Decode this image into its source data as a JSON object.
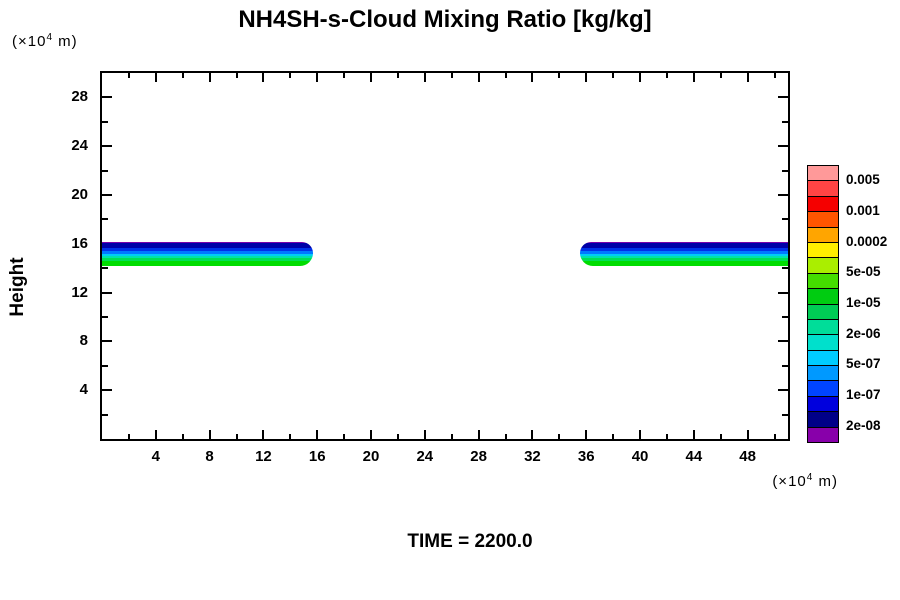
{
  "figure": {
    "title": "NH4SH-s-Cloud Mixing Ratio [kg/kg]",
    "time_label": "TIME = 2200.0",
    "y_axis": {
      "label": "Height",
      "unit_prefix": "(×10",
      "unit_sup": "4",
      "unit_suffix": " m)"
    },
    "x_axis": {
      "unit_prefix": "(×10",
      "unit_sup": "4",
      "unit_suffix": " m)"
    }
  },
  "chart_data": {
    "type": "heatmap",
    "subtype": "filled-contour",
    "title": "NH4SH-s-Cloud Mixing Ratio [kg/kg]",
    "xlabel": "(×10⁴ m)",
    "ylabel": "Height (×10⁴ m)",
    "xlim": [
      0,
      51
    ],
    "ylim": [
      0,
      30
    ],
    "grid": false,
    "x_major_ticks": [
      4,
      8,
      12,
      16,
      20,
      24,
      28,
      32,
      36,
      40,
      44,
      48
    ],
    "x_minor_step": 2,
    "y_major_ticks": [
      4,
      8,
      12,
      16,
      20,
      24,
      28
    ],
    "y_minor_step": 2,
    "annotations": [
      "TIME = 2200.0"
    ],
    "legend": {
      "position": "right",
      "labels": [
        "0.005",
        "0.001",
        "0.0002",
        "5e-05",
        "1e-05",
        "2e-06",
        "5e-07",
        "1e-07",
        "2e-08"
      ],
      "colors_top_to_bottom": [
        "#FF9999",
        "#FF4444",
        "#F50000",
        "#FF5500",
        "#FFA500",
        "#FFEE00",
        "#AAEE00",
        "#44DD00",
        "#00CC11",
        "#00CC55",
        "#00DD99",
        "#00E0CC",
        "#00CCFF",
        "#0099FF",
        "#0044FF",
        "#0000DD",
        "#000088",
        "#8800AA"
      ]
    },
    "bands": [
      {
        "name": "left-cloud-band",
        "x_start": 0.0,
        "x_end": 15.7,
        "y_bottom": 14.2,
        "y_top": 16.15,
        "tip": "right",
        "layers_top_to_bottom": [
          {
            "level": "2e-08",
            "color": "#7700AA",
            "px": 1
          },
          {
            "level": "1e-07",
            "color": "#0000A8",
            "px": 5
          },
          {
            "level": "5e-07",
            "color": "#0030E8",
            "px": 3
          },
          {
            "level": "2e-06",
            "color": "#0078FF",
            "px": 3
          },
          {
            "level": "5e-06",
            "color": "#00CCF5",
            "px": 2
          },
          {
            "level": "1e-05",
            "color": "#00E2AA",
            "px": 2
          },
          {
            "level": "2e-05",
            "color": "#00E055",
            "px": 3
          },
          {
            "level": "5e-05",
            "color": "#00DC00",
            "px": 5
          }
        ]
      },
      {
        "name": "right-cloud-band",
        "x_start": 35.5,
        "x_end": 51.0,
        "y_bottom": 14.2,
        "y_top": 16.15,
        "tip": "left",
        "layers_top_to_bottom": [
          {
            "level": "2e-08",
            "color": "#7700AA",
            "px": 1
          },
          {
            "level": "1e-07",
            "color": "#0000A8",
            "px": 5
          },
          {
            "level": "5e-07",
            "color": "#0030E8",
            "px": 3
          },
          {
            "level": "2e-06",
            "color": "#0078FF",
            "px": 3
          },
          {
            "level": "5e-06",
            "color": "#00CCF5",
            "px": 2
          },
          {
            "level": "1e-05",
            "color": "#00E2AA",
            "px": 2
          },
          {
            "level": "2e-05",
            "color": "#00E055",
            "px": 3
          },
          {
            "level": "5e-05",
            "color": "#00DC00",
            "px": 5
          }
        ]
      }
    ]
  }
}
